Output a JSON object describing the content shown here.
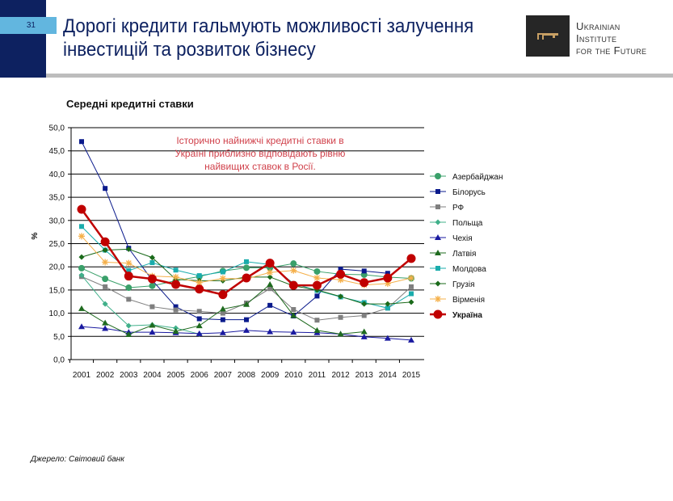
{
  "slide": {
    "number": "31",
    "title_line1": "Дорогі кредити гальмують можливості залучення",
    "title_line2": "інвестицій та розвиток бізнесу",
    "logo": {
      "line1": "Ukrainian",
      "line2": "Institute",
      "line3": "for the Future"
    },
    "source": "Джерело: Світовий банк"
  },
  "colors": {
    "navy": "#0d2160",
    "accent": "#62b6df",
    "annotation": "#d0404a"
  },
  "chart_data": {
    "type": "line",
    "title": "Середні кредитні ставки",
    "ylabel": "%",
    "ylim": [
      0,
      50
    ],
    "yticks": [
      "0,0",
      "5,0",
      "10,0",
      "15,0",
      "20,0",
      "25,0",
      "30,0",
      "35,0",
      "40,0",
      "45,0",
      "50,0"
    ],
    "grid": true,
    "legend": "right",
    "annotation": [
      "Історично найнижчі кредитні ставки в",
      "Україні приблизно відповідають рівню",
      "найвищих ставок в Росії."
    ],
    "categories": [
      "2001",
      "2002",
      "2003",
      "2004",
      "2005",
      "2006",
      "2007",
      "2008",
      "2009",
      "2010",
      "2011",
      "2012",
      "2013",
      "2014",
      "2015"
    ],
    "series": [
      {
        "name": "Азербайджан",
        "color": "#3aa06a",
        "marker": "circle",
        "values": [
          19.7,
          17.4,
          15.5,
          15.9,
          17.0,
          17.9,
          19.1,
          19.8,
          19.8,
          20.7,
          19.0,
          18.4,
          18.3,
          17.8,
          17.5
        ]
      },
      {
        "name": "Білорусь",
        "color": "#0a1a8c",
        "marker": "square",
        "values": [
          47.0,
          36.9,
          24.0,
          17.1,
          11.4,
          8.8,
          8.6,
          8.6,
          11.7,
          9.4,
          13.7,
          19.5,
          19.1,
          18.6,
          null
        ]
      },
      {
        "name": "РФ",
        "color": "#7f7f7f",
        "marker": "square",
        "values": [
          17.9,
          15.7,
          13.0,
          11.4,
          10.7,
          10.4,
          10.0,
          12.2,
          15.3,
          10.8,
          8.5,
          9.1,
          9.5,
          11.1,
          15.7
        ]
      },
      {
        "name": "Польща",
        "color": "#40b08a",
        "marker": "diamond",
        "values": [
          18.2,
          12.0,
          7.3,
          7.5,
          6.8,
          5.5,
          null,
          null,
          null,
          null,
          null,
          null,
          null,
          null,
          null
        ]
      },
      {
        "name": "Чехія",
        "color": "#1a1aa0",
        "marker": "triangle",
        "values": [
          7.1,
          6.7,
          5.9,
          5.9,
          5.8,
          5.6,
          5.8,
          6.3,
          6.0,
          5.9,
          5.8,
          5.5,
          4.9,
          4.6,
          4.2
        ]
      },
      {
        "name": "Латвія",
        "color": "#1e6a1e",
        "marker": "triangle",
        "values": [
          11.0,
          7.9,
          5.4,
          7.4,
          6.1,
          7.3,
          10.9,
          11.9,
          16.2,
          9.5,
          6.3,
          5.5,
          6.0,
          null,
          null
        ]
      },
      {
        "name": "Молдова",
        "color": "#1aacac",
        "marker": "square",
        "values": [
          28.7,
          23.6,
          19.2,
          20.9,
          19.3,
          18.1,
          18.9,
          21.1,
          20.5,
          16.4,
          14.9,
          13.5,
          12.3,
          11.1,
          14.2
        ]
      },
      {
        "name": "Грузія",
        "color": "#1a6a1a",
        "marker": "diamond",
        "values": [
          22.1,
          23.6,
          23.8,
          22.0,
          17.3,
          17.0,
          17.0,
          17.8,
          17.8,
          15.9,
          15.0,
          13.6,
          12.0,
          12.0,
          12.4
        ]
      },
      {
        "name": "Вірменія",
        "color": "#f5b04a",
        "marker": "star",
        "values": [
          26.6,
          21.0,
          20.8,
          18.0,
          17.8,
          16.6,
          17.5,
          17.4,
          18.8,
          19.2,
          17.6,
          17.2,
          16.1,
          16.4,
          17.6
        ]
      },
      {
        "name": "Україна",
        "color": "#c00000",
        "marker": "bigcircle",
        "values": [
          32.4,
          25.4,
          18.0,
          17.4,
          16.2,
          15.2,
          14.0,
          17.6,
          20.8,
          16.0,
          16.0,
          18.4,
          16.6,
          17.6,
          21.8
        ]
      }
    ]
  }
}
